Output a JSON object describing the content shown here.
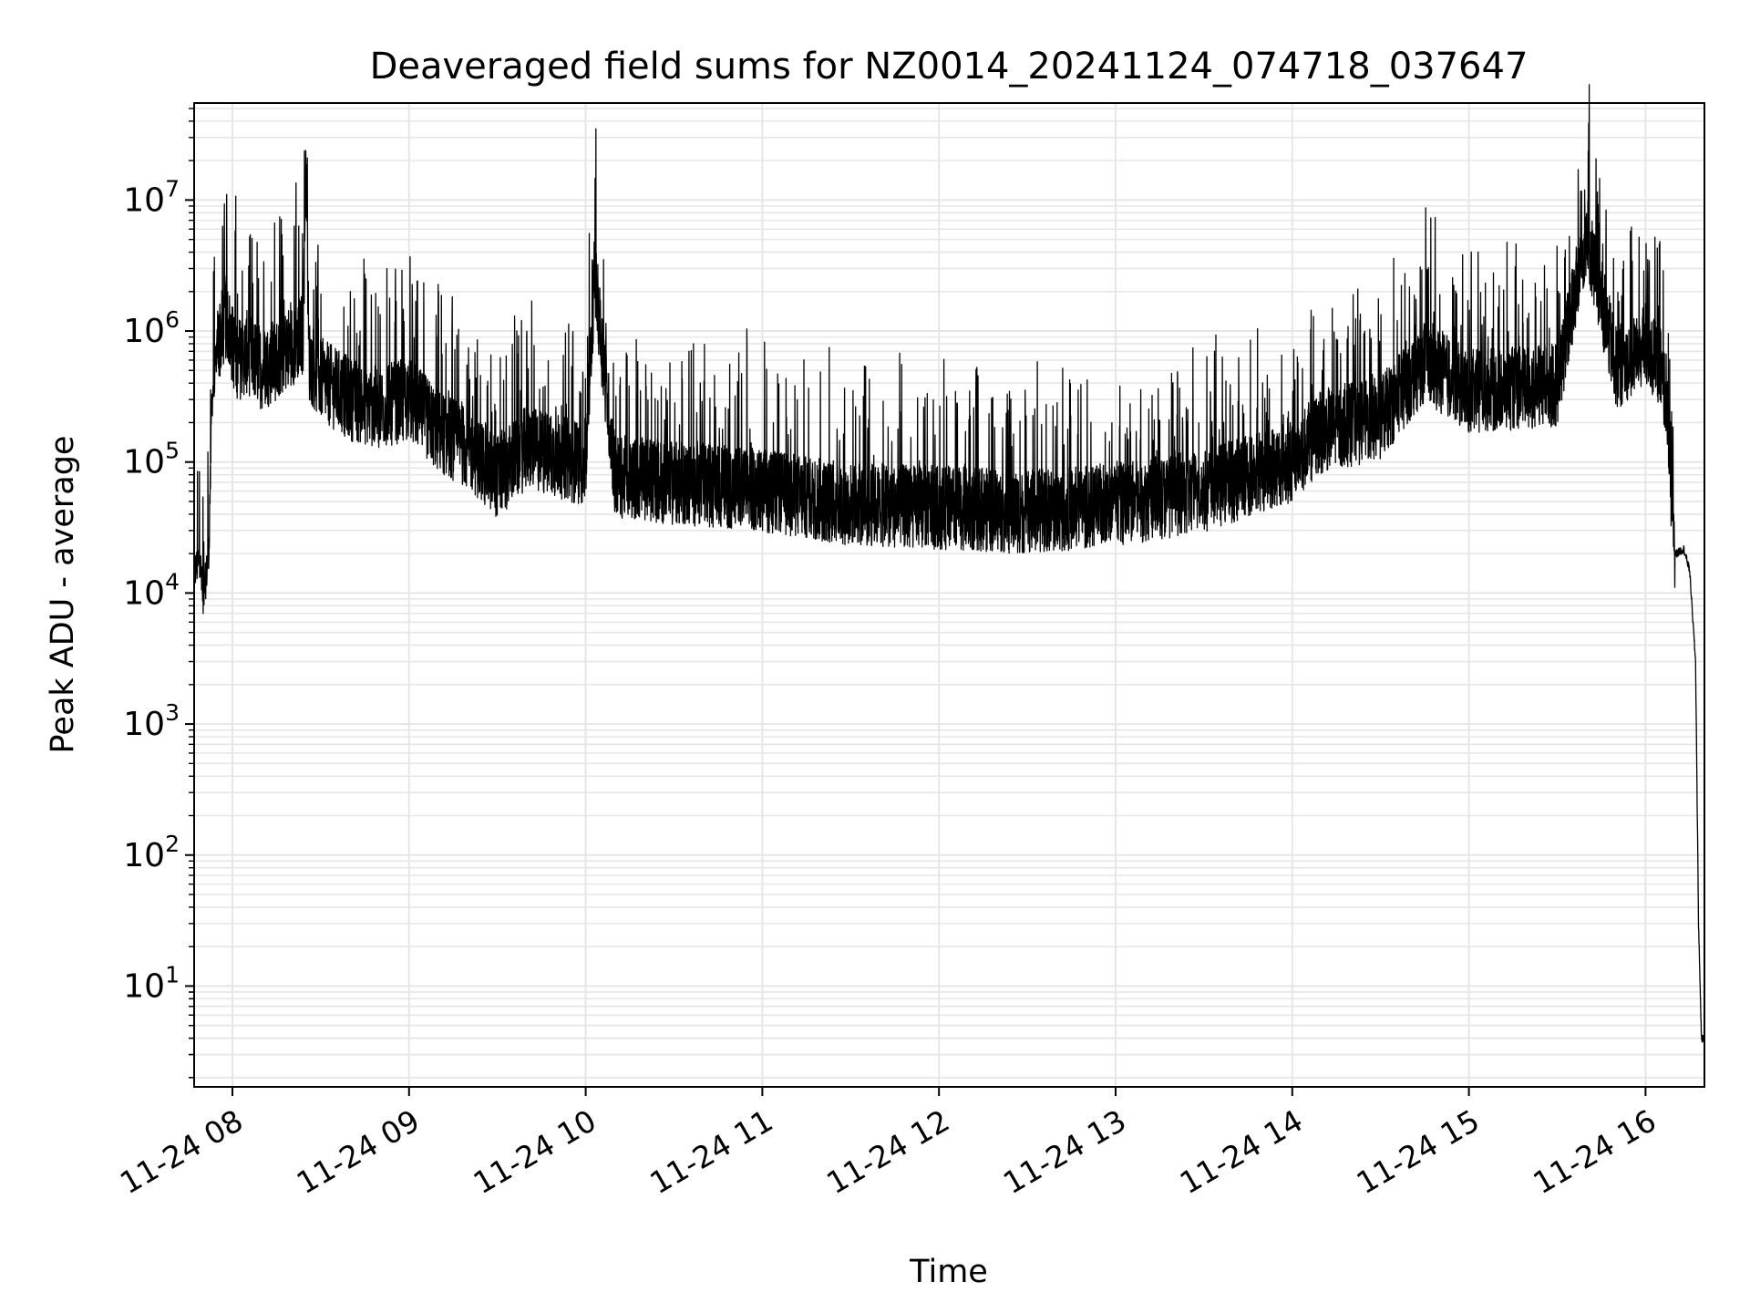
{
  "chart_data": {
    "type": "line",
    "title": "Deaveraged field sums for NZ0014_20241124_074718_037647",
    "xlabel": "Time",
    "ylabel": "Peak ADU - average",
    "y_scale": "log",
    "ylim": [
      1.7,
      55000000
    ],
    "xlim": [
      "2024-11-24 07:47",
      "2024-11-24 16:20"
    ],
    "x_ticks": [
      "2024-11-24 08:00",
      "2024-11-24 09:00",
      "2024-11-24 10:00",
      "2024-11-24 11:00",
      "2024-11-24 12:00",
      "2024-11-24 13:00",
      "2024-11-24 14:00",
      "2024-11-24 15:00",
      "2024-11-24 16:00"
    ],
    "x_tick_labels": [
      "11-24 08",
      "11-24 09",
      "11-24 10",
      "11-24 11",
      "11-24 12",
      "11-24 13",
      "11-24 14",
      "11-24 15",
      "11-24 16"
    ],
    "y_ticks": [
      10,
      100,
      1000,
      10000,
      100000,
      1000000,
      10000000
    ],
    "y_tick_labels": [
      {
        "base": "10",
        "exp": "1"
      },
      {
        "base": "10",
        "exp": "2"
      },
      {
        "base": "10",
        "exp": "3"
      },
      {
        "base": "10",
        "exp": "4"
      },
      {
        "base": "10",
        "exp": "5"
      },
      {
        "base": "10",
        "exp": "6"
      },
      {
        "base": "10",
        "exp": "7"
      }
    ],
    "grid": true,
    "line_color": "#000000",
    "grid_color": "#e6e6e6",
    "series": [
      {
        "x": [
          "2024-11-24 07:47",
          "2024-11-24 07:49",
          "2024-11-24 07:50",
          "2024-11-24 07:52",
          "2024-11-24 07:53",
          "2024-11-24 07:55",
          "2024-11-24 07:58",
          "2024-11-24 08:00",
          "2024-11-24 08:02",
          "2024-11-24 08:05",
          "2024-11-24 08:10",
          "2024-11-24 08:15",
          "2024-11-24 08:20",
          "2024-11-24 08:24",
          "2024-11-24 08:25",
          "2024-11-24 08:26",
          "2024-11-24 08:30",
          "2024-11-24 08:40",
          "2024-11-24 08:50",
          "2024-11-24 09:00",
          "2024-11-24 09:10",
          "2024-11-24 09:20",
          "2024-11-24 09:30",
          "2024-11-24 09:40",
          "2024-11-24 09:50",
          "2024-11-24 10:00",
          "2024-11-24 10:03",
          "2024-11-24 10:10",
          "2024-11-24 10:30",
          "2024-11-24 10:50",
          "2024-11-24 11:00",
          "2024-11-24 11:30",
          "2024-11-24 12:00",
          "2024-11-24 12:30",
          "2024-11-24 13:00",
          "2024-11-24 13:30",
          "2024-11-24 14:00",
          "2024-11-24 14:10",
          "2024-11-24 14:30",
          "2024-11-24 14:45",
          "2024-11-24 15:00",
          "2024-11-24 15:30",
          "2024-11-24 15:40",
          "2024-11-24 15:50",
          "2024-11-24 16:00",
          "2024-11-24 16:05",
          "2024-11-24 16:07",
          "2024-11-24 16:10",
          "2024-11-24 16:13",
          "2024-11-24 16:15",
          "2024-11-24 16:17",
          "2024-11-24 16:18",
          "2024-11-24 16:19",
          "2024-11-24 16:20"
        ],
        "y": [
          15000,
          20000,
          9000,
          22000,
          300000,
          900000,
          1500000,
          900000,
          700000,
          800000,
          600000,
          700000,
          900000,
          1100000,
          26000000,
          700000,
          500000,
          350000,
          300000,
          350000,
          200000,
          150000,
          90000,
          150000,
          130000,
          110000,
          3200000,
          90000,
          80000,
          75000,
          70000,
          55000,
          52000,
          48000,
          55000,
          70000,
          120000,
          200000,
          250000,
          700000,
          400000,
          450000,
          6500000,
          600000,
          900000,
          600000,
          400000,
          20000,
          22000,
          15000,
          3000,
          30,
          4,
          4
        ]
      }
    ]
  }
}
